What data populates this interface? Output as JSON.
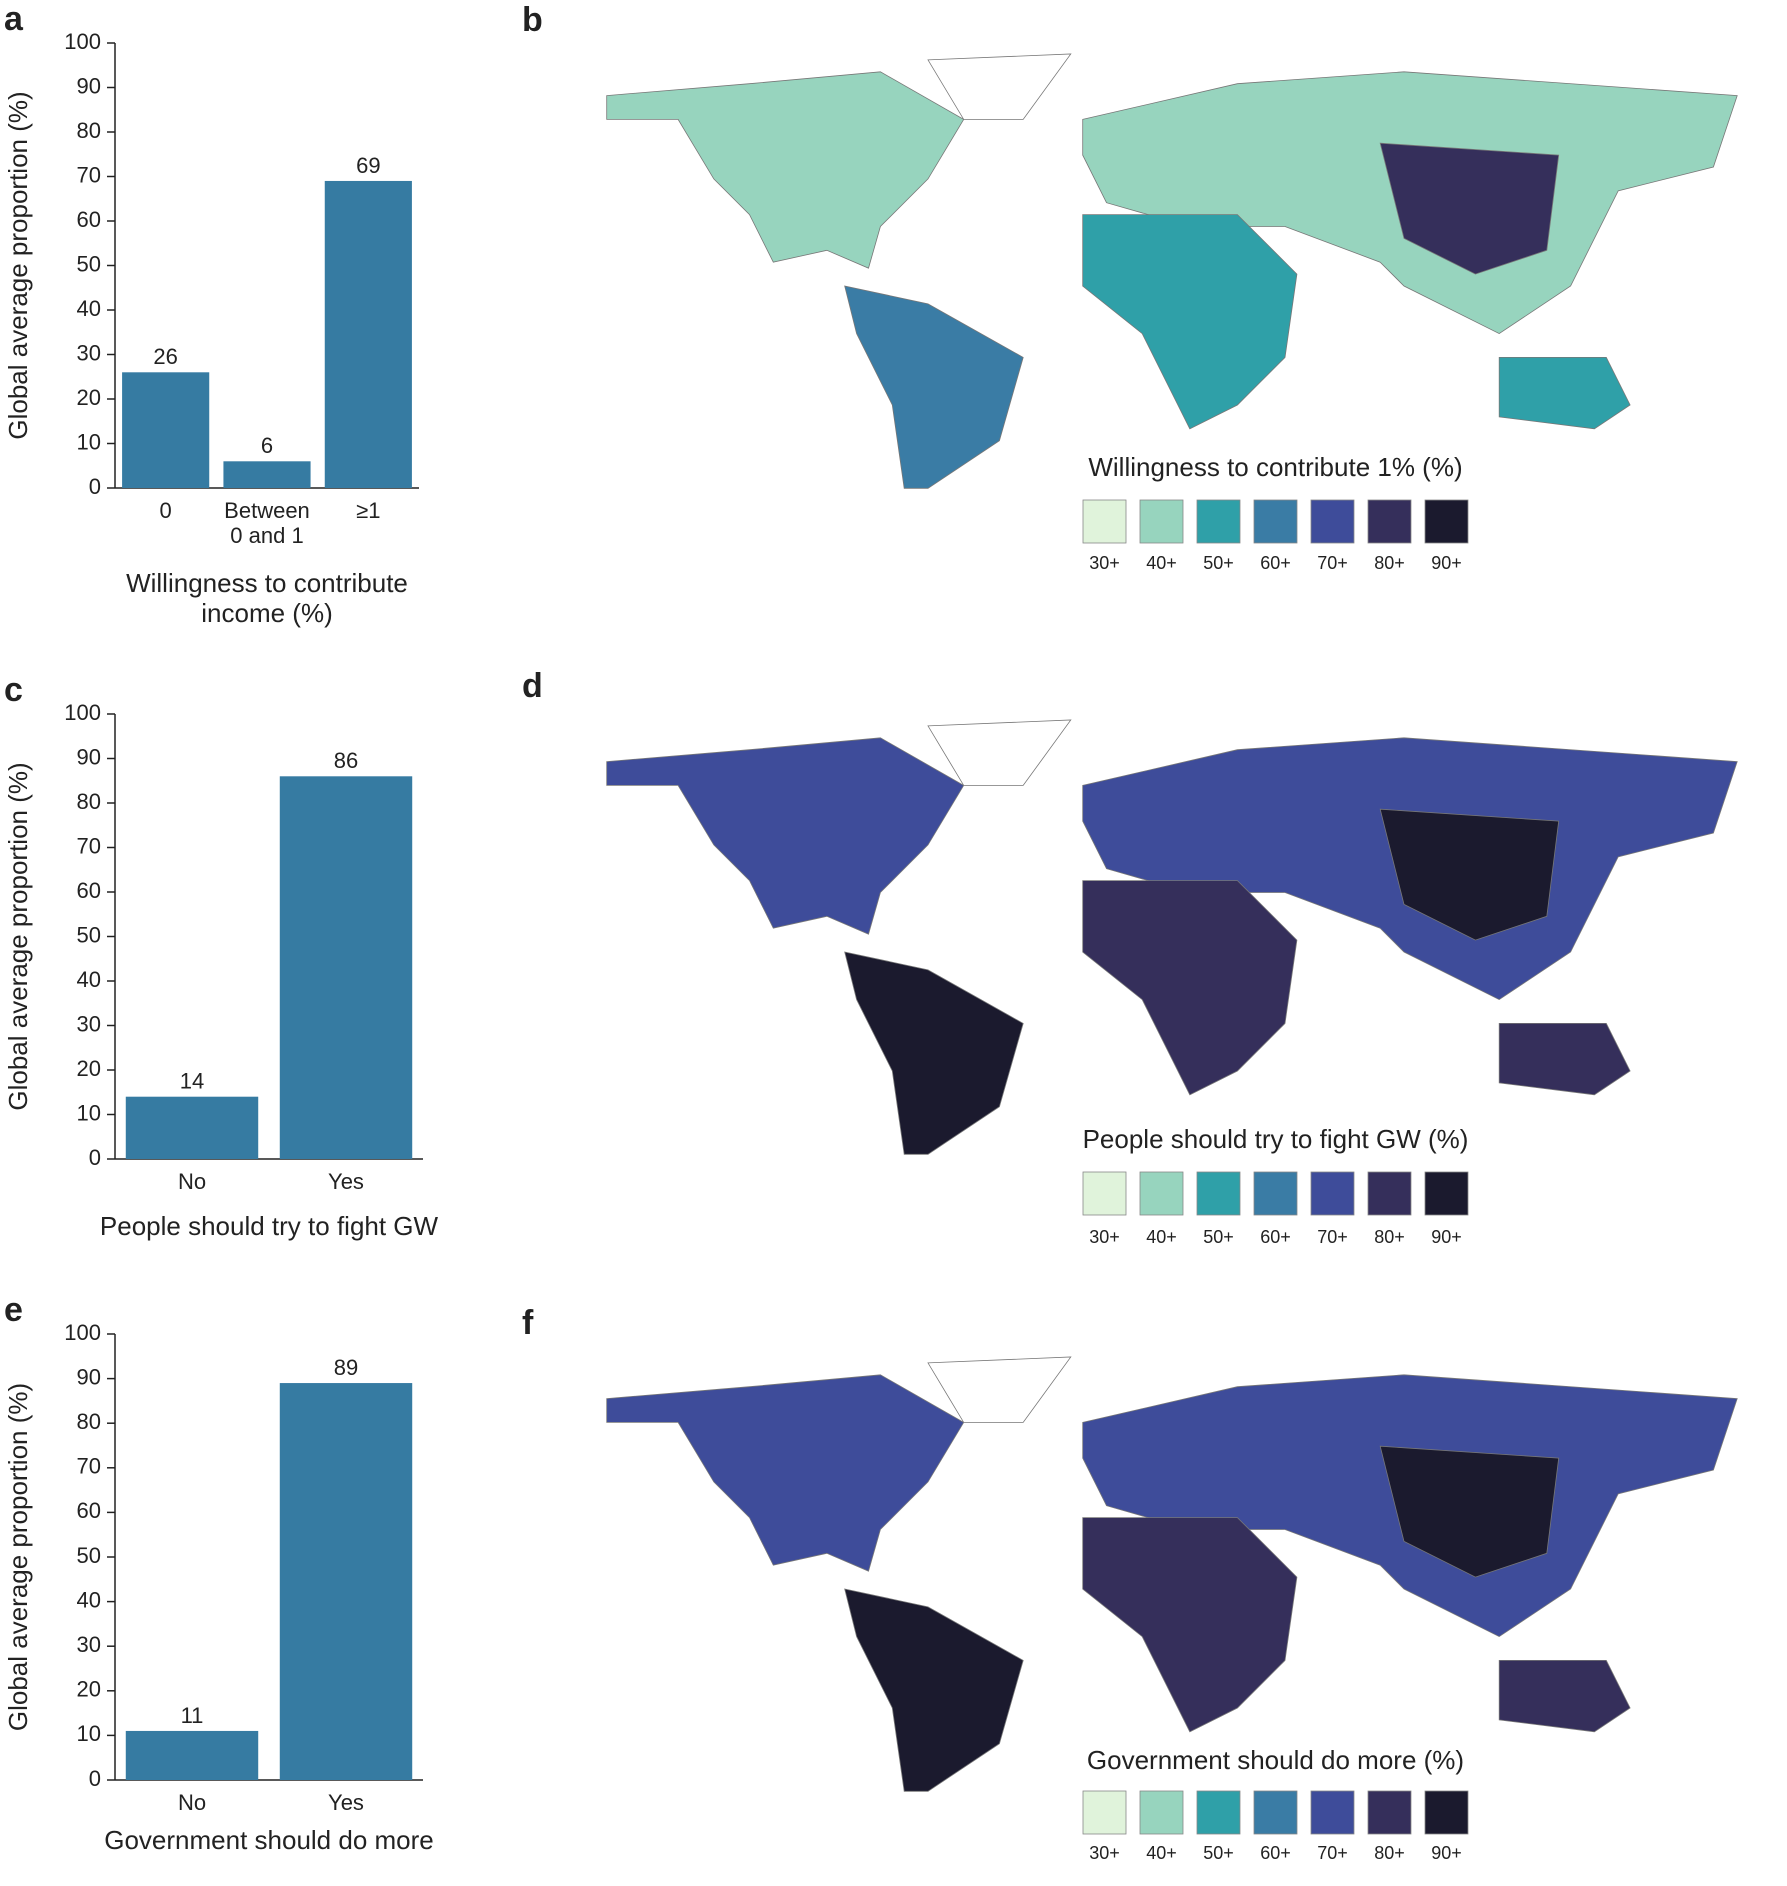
{
  "chart_data": [
    {
      "type": "bar",
      "panel_label": "a",
      "ylabel": "Global average proportion (%)",
      "xlabel": "Willingness to contribute income (%)",
      "categories": [
        "0",
        "Between 0 and 1",
        "≥1"
      ],
      "values": [
        26,
        6,
        69
      ],
      "color": "#367ba2",
      "ylim": [
        0,
        100
      ],
      "yticks": [
        0,
        10,
        20,
        30,
        40,
        50,
        60,
        70,
        80,
        90,
        100
      ]
    },
    {
      "type": "choropleth",
      "panel_label": "b",
      "legend_title": "Willingness to contribute 1% (%)",
      "legend": [
        "30+",
        "40+",
        "50+",
        "60+",
        "70+",
        "80+",
        "90+"
      ],
      "colors": [
        "#e0f3db",
        "#97d4be",
        "#2fa0a8",
        "#3a7ca5",
        "#3e4c9a",
        "#352f5b",
        "#1b1a2e"
      ]
    },
    {
      "type": "bar",
      "panel_label": "c",
      "ylabel": "Global average proportion (%)",
      "xlabel": "People should try to fight GW",
      "categories": [
        "No",
        "Yes"
      ],
      "values": [
        14,
        86
      ],
      "color": "#367ba2",
      "ylim": [
        0,
        100
      ],
      "yticks": [
        0,
        10,
        20,
        30,
        40,
        50,
        60,
        70,
        80,
        90,
        100
      ]
    },
    {
      "type": "choropleth",
      "panel_label": "d",
      "legend_title": "People should try to fight GW (%)",
      "legend": [
        "30+",
        "40+",
        "50+",
        "60+",
        "70+",
        "80+",
        "90+"
      ],
      "colors": [
        "#e0f3db",
        "#97d4be",
        "#2fa0a8",
        "#3a7ca5",
        "#3e4c9a",
        "#352f5b",
        "#1b1a2e"
      ]
    },
    {
      "type": "bar",
      "panel_label": "e",
      "ylabel": "Global average proportion (%)",
      "xlabel": "Government should do more",
      "categories": [
        "No",
        "Yes"
      ],
      "values": [
        11,
        89
      ],
      "color": "#367ba2",
      "ylim": [
        0,
        100
      ],
      "yticks": [
        0,
        10,
        20,
        30,
        40,
        50,
        60,
        70,
        80,
        90,
        100
      ]
    },
    {
      "type": "choropleth",
      "panel_label": "f",
      "legend_title": "Government should do more (%)",
      "legend": [
        "30+",
        "40+",
        "50+",
        "60+",
        "70+",
        "80+",
        "90+"
      ],
      "colors": [
        "#e0f3db",
        "#97d4be",
        "#2fa0a8",
        "#3a7ca5",
        "#3e4c9a",
        "#352f5b",
        "#1b1a2e"
      ]
    }
  ]
}
